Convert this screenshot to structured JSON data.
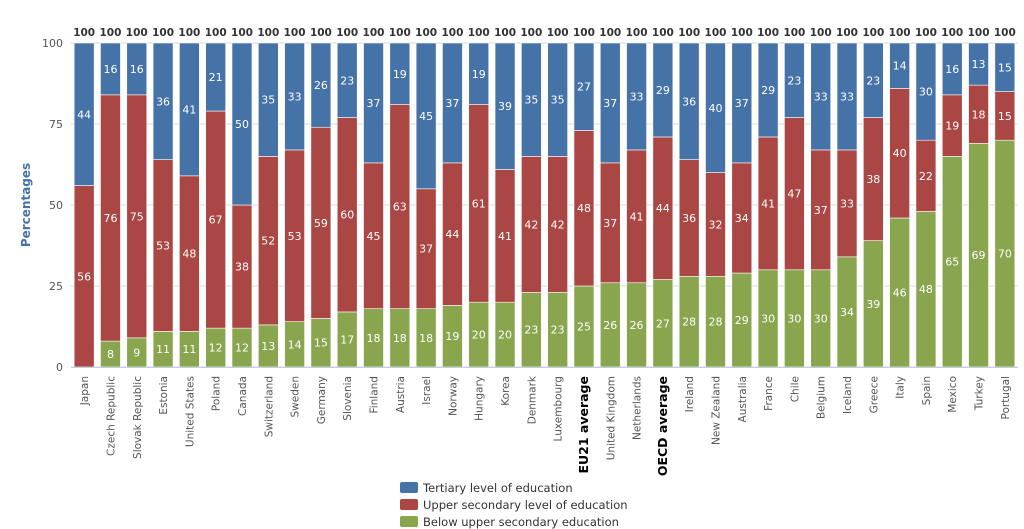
{
  "chart_data": {
    "type": "bar",
    "stacked": true,
    "ylabel": "Percentages",
    "ylim": [
      0,
      100
    ],
    "yticks": [
      0,
      25,
      50,
      75,
      100
    ],
    "categories": [
      "Japan",
      "Czech Republic",
      "Slovak Republic",
      "Estonia",
      "United States",
      "Poland",
      "Canada",
      "Switzerland",
      "Sweden",
      "Germany",
      "Slovenia",
      "Finland",
      "Austria",
      "Israel",
      "Norway",
      "Hungary",
      "Korea",
      "Denmark",
      "Luxembourg",
      "EU21 average",
      "United Kingdom",
      "Netherlands",
      "OECD average",
      "Ireland",
      "New Zealand",
      "Australia",
      "France",
      "Chile",
      "Belgium",
      "Iceland",
      "Greece",
      "Italy",
      "Spain",
      "Mexico",
      "Turkey",
      "Portugal"
    ],
    "highlighted": [
      "EU21 average",
      "OECD average"
    ],
    "totals": [
      100,
      100,
      100,
      100,
      100,
      100,
      100,
      100,
      100,
      100,
      100,
      100,
      100,
      100,
      100,
      100,
      100,
      100,
      100,
      100,
      100,
      100,
      100,
      100,
      100,
      100,
      100,
      100,
      100,
      100,
      100,
      100,
      100,
      100,
      100,
      100
    ],
    "series": [
      {
        "name": "Below upper secondary education",
        "color": "#89a54e",
        "values": [
          null,
          8,
          9,
          11,
          11,
          12,
          12,
          13,
          14,
          15,
          17,
          18,
          18,
          18,
          19,
          20,
          20,
          23,
          23,
          25,
          26,
          26,
          27,
          28,
          28,
          29,
          30,
          30,
          30,
          34,
          39,
          46,
          48,
          65,
          69,
          70
        ]
      },
      {
        "name": "Upper secondary level of education",
        "color": "#aa4643",
        "values": [
          56,
          76,
          75,
          53,
          48,
          67,
          38,
          52,
          53,
          59,
          60,
          45,
          63,
          37,
          44,
          61,
          41,
          42,
          42,
          48,
          37,
          41,
          44,
          36,
          32,
          34,
          41,
          47,
          37,
          33,
          38,
          40,
          22,
          19,
          18,
          15
        ]
      },
      {
        "name": "Tertiary level of education",
        "color": "#4572a7",
        "values": [
          44,
          16,
          16,
          36,
          41,
          21,
          50,
          35,
          33,
          26,
          23,
          37,
          19,
          45,
          37,
          19,
          39,
          35,
          35,
          27,
          37,
          33,
          29,
          36,
          40,
          37,
          29,
          23,
          33,
          33,
          23,
          14,
          30,
          16,
          13,
          15
        ]
      }
    ],
    "legend_position": "bottom-center"
  }
}
